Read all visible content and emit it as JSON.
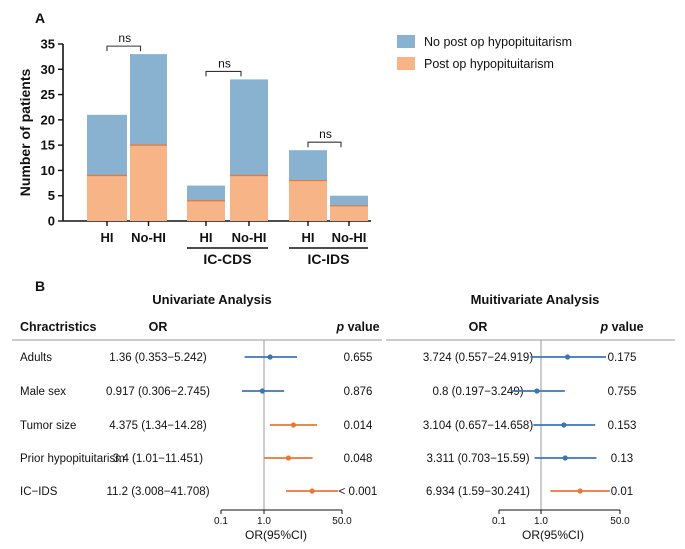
{
  "panel_a_label": "A",
  "panel_b_label": "B",
  "colors": {
    "no_post_op": "#88b2d0",
    "post_op": "#f7b486",
    "univariate_point": "#3b75b8",
    "highlight_point": "#e8783a"
  },
  "chart_data": [
    {
      "type": "bar",
      "stacked": true,
      "title": "",
      "ylabel": "Number of  patients",
      "ylim": [
        0,
        35
      ],
      "yticks": [
        0,
        5,
        10,
        15,
        20,
        25,
        30,
        35
      ],
      "groups": [
        {
          "name": "",
          "categories": [
            "HI",
            "No-HI"
          ],
          "post_op": [
            9,
            15
          ],
          "no_post_op": [
            12,
            18
          ],
          "significance": "ns"
        },
        {
          "name": "IC-CDS",
          "categories": [
            "HI",
            "No-HI"
          ],
          "post_op": [
            4,
            9
          ],
          "no_post_op": [
            3,
            19
          ],
          "significance": "ns"
        },
        {
          "name": "IC-IDS",
          "categories": [
            "HI",
            "No-HI"
          ],
          "post_op": [
            8,
            3
          ],
          "no_post_op": [
            6,
            2
          ],
          "significance": "ns"
        }
      ],
      "series": [
        {
          "name": "No post op hypopituitarism",
          "color_key": "no_post_op"
        },
        {
          "name": "Post op hypopituitarism",
          "color_key": "post_op"
        }
      ],
      "legend": "top-right"
    },
    {
      "type": "forest",
      "headers": {
        "characteristics": "Chractristics",
        "or": "OR",
        "p_value": "p value",
        "p_italic": "p",
        "p_rest": " value"
      },
      "xlabel": "OR(95%CI)",
      "xscale": "log",
      "xlim": [
        0.1,
        50.0
      ],
      "xticks": [
        0.1,
        1.0,
        50.0
      ],
      "xtick_labels": [
        "0.1",
        "1.0",
        "50.0"
      ],
      "reference_line": 1.0,
      "rows": [
        "Adults",
        "Male sex",
        "Tumor size",
        "Prior hypopituitarism",
        "IC−IDS"
      ],
      "analyses": [
        {
          "title": "Univariate Analysis",
          "entries": [
            {
              "or": 1.36,
              "low": 0.353,
              "high": 5.242,
              "or_text": "1.36 (0.353−5.242)",
              "p_text": "0.655",
              "color": "blue"
            },
            {
              "or": 0.917,
              "low": 0.306,
              "high": 2.745,
              "or_text": "0.917 (0.306−2.745)",
              "p_text": "0.876",
              "color": "blue"
            },
            {
              "or": 4.375,
              "low": 1.34,
              "high": 14.28,
              "or_text": "4.375 (1.34−14.28)",
              "p_text": "0.014",
              "color": "orange"
            },
            {
              "or": 3.4,
              "low": 1.01,
              "high": 11.451,
              "or_text": "3.4 (1.01−11.451)",
              "p_text": "0.048",
              "color": "orange"
            },
            {
              "or": 11.2,
              "low": 3.008,
              "high": 41.708,
              "or_text": "11.2 (3.008−41.708)",
              "p_text": "< 0.001",
              "color": "orange"
            }
          ]
        },
        {
          "title": "Muitivariate Analysis",
          "entries": [
            {
              "or": 3.724,
              "low": 0.557,
              "high": 24.919,
              "or_text": "3.724 (0.557−24.919)",
              "p_text": "0.175",
              "color": "blue"
            },
            {
              "or": 0.8,
              "low": 0.197,
              "high": 3.249,
              "or_text": "0.8 (0.197−3.249)",
              "p_text": "0.755",
              "color": "blue"
            },
            {
              "or": 3.104,
              "low": 0.657,
              "high": 14.658,
              "or_text": "3.104 (0.657−14.658)",
              "p_text": "0.153",
              "color": "blue"
            },
            {
              "or": 3.311,
              "low": 0.703,
              "high": 15.59,
              "or_text": "3.311 (0.703−15.59)",
              "p_text": "0.13",
              "color": "blue"
            },
            {
              "or": 6.934,
              "low": 1.59,
              "high": 30.241,
              "or_text": "6.934 (1.59−30.241)",
              "p_text": "0.01",
              "color": "orange"
            }
          ]
        }
      ]
    }
  ]
}
